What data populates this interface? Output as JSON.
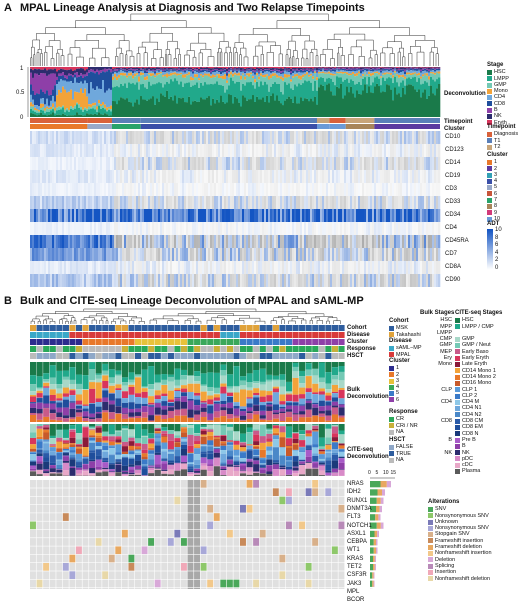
{
  "panel_a": {
    "letter": "A",
    "title": "MPAL Lineage Analysis at  Diagnosis and Two Relapse Timepoints",
    "row_labels": {
      "deconvolution": "Deconvolution",
      "timepoint": "Timepoint",
      "cluster": "Cluster"
    },
    "y_ticks": [
      "1",
      "0.5",
      "0"
    ],
    "markers": [
      "CD10",
      "CD123",
      "CD14",
      "CD19",
      "CD3",
      "CD33",
      "CD34",
      "CD4",
      "CD45RA",
      "CD7",
      "CD8A",
      "CD90"
    ],
    "legend_stage": {
      "title": "Stage",
      "items": [
        {
          "label": "HSC",
          "color": "#1a7a4a"
        },
        {
          "label": "LMPP",
          "color": "#21a98b"
        },
        {
          "label": "GMP",
          "color": "#74c9b5"
        },
        {
          "label": "Mono",
          "color": "#f2a33a"
        },
        {
          "label": "CD4",
          "color": "#6fa8dc"
        },
        {
          "label": "CD8",
          "color": "#1f4e9c"
        },
        {
          "label": "B",
          "color": "#8e3fa8"
        },
        {
          "label": "NK",
          "color": "#2c2c6e"
        },
        {
          "label": "Eryth",
          "color": "#d8355c"
        }
      ]
    },
    "legend_timepoint": {
      "title": "Timepoint",
      "items": [
        {
          "label": "Diagnosis",
          "color": "#d9613a"
        },
        {
          "label": "T1",
          "color": "#5a7fb8"
        },
        {
          "label": "T2",
          "color": "#c8a57a"
        }
      ]
    },
    "legend_cluster": {
      "title": "Cluster",
      "items": [
        {
          "label": "1",
          "color": "#e8782a"
        },
        {
          "label": "2",
          "color": "#5b3aa0"
        },
        {
          "label": "3",
          "color": "#32a0b5"
        },
        {
          "label": "4",
          "color": "#3a4fa8"
        },
        {
          "label": "5",
          "color": "#98a8c8"
        },
        {
          "label": "6",
          "color": "#c8553a"
        },
        {
          "label": "7",
          "color": "#29a36a"
        },
        {
          "label": "8",
          "color": "#a8855a"
        },
        {
          "label": "9",
          "color": "#d23a7a"
        },
        {
          "label": "10",
          "color": "#6a9ad8"
        }
      ]
    },
    "legend_adt": {
      "title": "ADT",
      "ticks": [
        "10",
        "8",
        "6",
        "4",
        "2",
        "0"
      ]
    }
  },
  "panel_b": {
    "letter": "B",
    "title": "Bulk and CITE-seq Lineage Deconvolution of MPAL and sAML-MP",
    "row_labels": {
      "cohort": "Cohort",
      "disease": "Disease",
      "cluster": "Cluster",
      "response": "Response",
      "hsct": "HSCT",
      "bulk": "Bulk",
      "bulk2": "Deconvolution",
      "cite": "CITE-seq",
      "cite2": "Deconvolution"
    },
    "legend_cohort": {
      "title": "Cohort",
      "items": [
        {
          "label": "MSK",
          "color": "#2e5d9e"
        },
        {
          "label": "Takahashi",
          "color": "#e0a23a"
        }
      ]
    },
    "legend_disease": {
      "title": "Disease",
      "items": [
        {
          "label": "sAML−MP",
          "color": "#3aa8c8"
        },
        {
          "label": "MPAL",
          "color": "#d83a3a"
        }
      ]
    },
    "legend_cluster": {
      "title": "Cluster",
      "items": [
        {
          "label": "1",
          "color": "#2c2c8e"
        },
        {
          "label": "2",
          "color": "#e8782a"
        },
        {
          "label": "3",
          "color": "#e8c23a"
        },
        {
          "label": "4",
          "color": "#3aa85a"
        },
        {
          "label": "5",
          "color": "#3a7ac8"
        },
        {
          "label": "6",
          "color": "#8e3fa8"
        }
      ]
    },
    "legend_response": {
      "title": "Response",
      "items": [
        {
          "label": "CR",
          "color": "#2aa85a"
        },
        {
          "label": "CRi / NR",
          "color": "#c8b03a"
        },
        {
          "label": "NA",
          "color": "#bbbbbb"
        }
      ]
    },
    "legend_hsct": {
      "title": "HSCT",
      "items": [
        {
          "label": "FALSE",
          "color": "#8fa8c8"
        },
        {
          "label": "TRUE",
          "color": "#2e5d9e"
        },
        {
          "label": "NA",
          "color": "#bbbbbb"
        }
      ]
    },
    "stages_header": {
      "bulk": "Bulk Stages",
      "cite": "CITE-seq Stages"
    },
    "stage_rows": [
      {
        "bulk": "HSC",
        "items": [
          {
            "label": "HSC",
            "color": "#1a7a4a"
          }
        ]
      },
      {
        "bulk": "MPP",
        "items": [
          {
            "label": "LMPP / CMP",
            "color": "#21a98b"
          }
        ]
      },
      {
        "bulk": "LMPP",
        "items": []
      },
      {
        "bulk": "CMP",
        "items": [
          {
            "label": "GMP",
            "color": "#a8d8c8"
          }
        ]
      },
      {
        "bulk": "GMP",
        "items": [
          {
            "label": "GMP / Neut",
            "color": "#74c9b5"
          }
        ]
      },
      {
        "bulk": "MEP",
        "items": [
          {
            "label": "Early Baso",
            "color": "#c85a8a"
          }
        ]
      },
      {
        "bulk": "Ery",
        "items": [
          {
            "label": "Early Eryth",
            "color": "#d8355c"
          }
        ]
      },
      {
        "bulk": "Mono",
        "items": [
          {
            "label": "Late Eryth",
            "color": "#8a1a3a"
          }
        ]
      },
      {
        "bulk": "",
        "items": [
          {
            "label": "CD14 Mono 1",
            "color": "#f2a33a"
          }
        ]
      },
      {
        "bulk": "",
        "items": [
          {
            "label": "CD14 Mono 2",
            "color": "#e8782a"
          }
        ]
      },
      {
        "bulk": "",
        "items": [
          {
            "label": "CD16 Mono",
            "color": "#c85a2a"
          }
        ]
      },
      {
        "bulk": "CLP",
        "items": [
          {
            "label": "CLP 1",
            "color": "#5a9ad8"
          }
        ]
      },
      {
        "bulk": "",
        "items": [
          {
            "label": "CLP 2",
            "color": "#3a7ac8"
          }
        ]
      },
      {
        "bulk": "CD4",
        "items": [
          {
            "label": "CD4 M",
            "color": "#8ec8e8"
          }
        ]
      },
      {
        "bulk": "",
        "items": [
          {
            "label": "CD4 N1",
            "color": "#6fa8dc"
          }
        ]
      },
      {
        "bulk": "",
        "items": [
          {
            "label": "CD4 N2",
            "color": "#4a88c8"
          }
        ]
      },
      {
        "bulk": "CD8",
        "items": [
          {
            "label": "CD8 CM",
            "color": "#2a5aa8"
          }
        ]
      },
      {
        "bulk": "",
        "items": [
          {
            "label": "CD8 EM",
            "color": "#1f4e9c"
          }
        ]
      },
      {
        "bulk": "",
        "items": [
          {
            "label": "CD8 N",
            "color": "#1a3a7a"
          }
        ]
      },
      {
        "bulk": "B",
        "items": [
          {
            "label": "Pre B",
            "color": "#a85ac8"
          }
        ]
      },
      {
        "bulk": "",
        "items": [
          {
            "label": "B",
            "color": "#8e3fa8"
          }
        ]
      },
      {
        "bulk": "NK",
        "items": [
          {
            "label": "NK",
            "color": "#2c2c6e"
          }
        ]
      },
      {
        "bulk": "",
        "items": [
          {
            "label": "pDC",
            "color": "#d88ac8"
          }
        ]
      },
      {
        "bulk": "",
        "items": [
          {
            "label": "cDC",
            "color": "#e8a8c8"
          }
        ]
      },
      {
        "bulk": "",
        "items": [
          {
            "label": "Plasma",
            "color": "#5a5a5a"
          }
        ]
      }
    ],
    "genes": [
      "NRAS",
      "IDH2",
      "RUNX1",
      "DNMT3A",
      "FLT3",
      "NOTCH1",
      "ASXL1",
      "CEBPA",
      "WT1",
      "KRAS",
      "TET2",
      "CSF3R",
      "JAK3",
      "MPL",
      "BCOR"
    ],
    "gene_bar_axis": [
      "0",
      "5",
      "10",
      "15"
    ],
    "alterations": {
      "title": "Alterations",
      "items": [
        {
          "label": "SNV",
          "color": "#4aa85a"
        },
        {
          "label": "Nonsynonymous SNV",
          "color": "#8ec86a"
        },
        {
          "label": "Unknown",
          "color": "#7a7ab8"
        },
        {
          "label": "Nonsynonymous SNV",
          "color": "#a8a8d8"
        },
        {
          "label": "Stopgain SNV",
          "color": "#d8b08a"
        },
        {
          "label": "Frameshift insertion",
          "color": "#c88a5a"
        },
        {
          "label": "Frameshift deletion",
          "color": "#e8a860"
        },
        {
          "label": "Nonframeshift insertion",
          "color": "#f2c88a"
        },
        {
          "label": "Deletion",
          "color": "#d8a8d8"
        },
        {
          "label": "Splicing",
          "color": "#b88ab8"
        },
        {
          "label": "Insertion",
          "color": "#f0a8b8"
        },
        {
          "label": "Nonframeshift deletion",
          "color": "#e8d8a8"
        }
      ]
    }
  }
}
